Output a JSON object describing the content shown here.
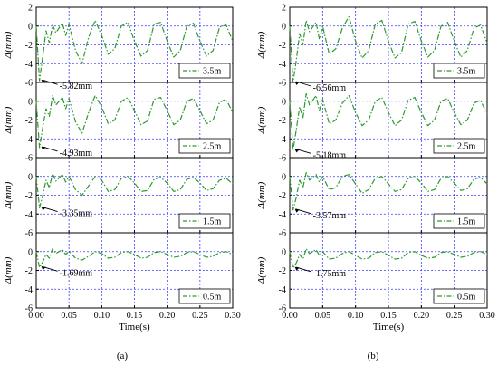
{
  "figure": {
    "x_axis_label": "Time(s)",
    "y_axis_label": "Δ(mm)",
    "grid": true,
    "series_color": "#2e9a2e",
    "grid_color": "#3b3bff",
    "legend_placement": "bottom-right",
    "line_style": "dash-dot"
  },
  "chart_data": [
    {
      "type": "line",
      "panel_label": "(a)",
      "xlim": [
        0,
        0.3
      ],
      "ylim": [
        -6,
        2
      ],
      "xticks": [
        "0.00",
        "0.05",
        "0.10",
        "0.15",
        "0.20",
        "0.25",
        "0.30"
      ],
      "subplots": [
        {
          "legend": "3.5m",
          "annotation": "-5.82mm",
          "yticks": [
            "2",
            "0",
            "-2",
            "-4",
            "-6"
          ],
          "series": [
            {
              "name": "3.5m",
              "x": [
                0,
                0.005,
                0.01,
                0.015,
                0.02,
                0.025,
                0.03,
                0.04,
                0.045,
                0.05,
                0.06,
                0.07,
                0.08,
                0.09,
                0.1,
                0.11,
                0.12,
                0.13,
                0.14,
                0.15,
                0.16,
                0.17,
                0.18,
                0.19,
                0.2,
                0.21,
                0.22,
                0.23,
                0.24,
                0.25,
                0.26,
                0.27,
                0.28,
                0.29,
                0.3
              ],
              "y": [
                0,
                -5.82,
                -3.2,
                -0.5,
                -1.8,
                0.1,
                -0.7,
                0.3,
                -1.0,
                0.2,
                -2.6,
                -4.0,
                -1.2,
                0.6,
                -1.0,
                -3.0,
                -2.4,
                0.0,
                0.4,
                -1.6,
                -3.2,
                -2.6,
                0.2,
                0.4,
                -1.6,
                -3.3,
                -2.6,
                0.0,
                0.3,
                -1.6,
                -3.2,
                -2.6,
                -0.1,
                0.1,
                -1.6
              ]
            }
          ]
        },
        {
          "legend": "2.5m",
          "annotation": "-4.93mm",
          "yticks": [
            "0",
            "-2",
            "-4",
            "-6"
          ],
          "series": [
            {
              "name": "2.5m",
              "x": [
                0,
                0.005,
                0.01,
                0.015,
                0.02,
                0.025,
                0.03,
                0.04,
                0.045,
                0.05,
                0.06,
                0.07,
                0.08,
                0.09,
                0.1,
                0.11,
                0.12,
                0.13,
                0.14,
                0.15,
                0.16,
                0.17,
                0.18,
                0.19,
                0.2,
                0.21,
                0.22,
                0.23,
                0.24,
                0.25,
                0.26,
                0.27,
                0.28,
                0.29,
                0.3
              ],
              "y": [
                0,
                -4.93,
                -2.8,
                -0.8,
                -1.6,
                0.6,
                -0.4,
                0.4,
                -0.8,
                0.3,
                -2.2,
                -3.4,
                -1.2,
                0.6,
                -0.6,
                -2.4,
                -2.0,
                0.0,
                0.4,
                -1.0,
                -2.5,
                -2.1,
                0.2,
                0.4,
                -1.0,
                -2.5,
                -2.0,
                0.0,
                0.3,
                -1.0,
                -2.4,
                -2.0,
                -0.1,
                0.2,
                -1.2
              ]
            }
          ]
        },
        {
          "legend": "1.5m",
          "annotation": "-3.35mm",
          "yticks": [
            "0",
            "-2",
            "-4",
            "-6"
          ],
          "series": [
            {
              "name": "1.5m",
              "x": [
                0,
                0.005,
                0.01,
                0.015,
                0.02,
                0.025,
                0.03,
                0.04,
                0.045,
                0.05,
                0.06,
                0.07,
                0.08,
                0.09,
                0.1,
                0.11,
                0.12,
                0.13,
                0.14,
                0.15,
                0.16,
                0.17,
                0.18,
                0.19,
                0.2,
                0.21,
                0.22,
                0.23,
                0.24,
                0.25,
                0.26,
                0.27,
                0.28,
                0.29,
                0.3
              ],
              "y": [
                0,
                -3.35,
                -2.0,
                -0.4,
                -1.2,
                0.3,
                -0.5,
                0.2,
                -0.6,
                0.0,
                -1.4,
                -2.0,
                -1.0,
                0.0,
                -0.4,
                -1.6,
                -1.4,
                -0.2,
                0.0,
                -0.7,
                -1.6,
                -1.5,
                -0.3,
                -0.1,
                -0.7,
                -1.6,
                -1.4,
                -0.3,
                -0.1,
                -0.7,
                -1.5,
                -1.3,
                -0.4,
                -0.2,
                -0.8
              ]
            }
          ]
        },
        {
          "legend": "0.5m",
          "annotation": "-1.69mm",
          "yticks": [
            "0",
            "-2",
            "-4",
            "-6"
          ],
          "series": [
            {
              "name": "0.5m",
              "x": [
                0,
                0.005,
                0.01,
                0.015,
                0.02,
                0.025,
                0.03,
                0.04,
                0.045,
                0.05,
                0.06,
                0.07,
                0.08,
                0.09,
                0.1,
                0.11,
                0.12,
                0.13,
                0.14,
                0.15,
                0.16,
                0.17,
                0.18,
                0.19,
                0.2,
                0.21,
                0.22,
                0.23,
                0.24,
                0.25,
                0.26,
                0.27,
                0.28,
                0.29,
                0.3
              ],
              "y": [
                0,
                -1.69,
                -1.1,
                -0.3,
                -0.7,
                0.3,
                -0.2,
                0.2,
                -0.3,
                0.0,
                -0.7,
                -0.9,
                -0.5,
                0.0,
                -0.2,
                -0.7,
                -0.6,
                -0.1,
                0.0,
                -0.3,
                -0.7,
                -0.6,
                -0.1,
                0.0,
                -0.3,
                -0.6,
                -0.5,
                -0.1,
                0.0,
                -0.3,
                -0.6,
                -0.5,
                -0.1,
                0.0,
                -0.3
              ]
            }
          ]
        }
      ]
    },
    {
      "type": "line",
      "panel_label": "(b)",
      "xlim": [
        0,
        0.3
      ],
      "ylim": [
        -6,
        2
      ],
      "xticks": [
        "0.00",
        "0.05",
        "0.10",
        "0.15",
        "0.20",
        "0.25",
        "0.30"
      ],
      "subplots": [
        {
          "legend": "3.5m",
          "annotation": "-6.56mm",
          "yticks": [
            "2",
            "0",
            "-2",
            "-4",
            "-6"
          ],
          "series": [
            {
              "name": "3.5m",
              "x": [
                0,
                0.005,
                0.01,
                0.015,
                0.02,
                0.025,
                0.03,
                0.04,
                0.045,
                0.05,
                0.06,
                0.07,
                0.08,
                0.09,
                0.1,
                0.11,
                0.12,
                0.13,
                0.14,
                0.15,
                0.16,
                0.17,
                0.18,
                0.19,
                0.2,
                0.21,
                0.22,
                0.23,
                0.24,
                0.25,
                0.26,
                0.27,
                0.28,
                0.29,
                0.3
              ],
              "y": [
                0,
                -6.56,
                -3.6,
                -0.8,
                -2.0,
                0.6,
                -0.6,
                0.4,
                -1.4,
                0.0,
                -3.0,
                -2.4,
                -0.2,
                1.0,
                -1.6,
                -3.4,
                -2.6,
                0.2,
                0.6,
                -1.6,
                -3.4,
                -2.8,
                0.2,
                0.5,
                -1.6,
                -3.3,
                -2.6,
                0.0,
                0.4,
                -1.6,
                -3.3,
                -2.6,
                -0.2,
                0.1,
                -1.8
              ]
            }
          ]
        },
        {
          "legend": "2.5m",
          "annotation": "-5.18mm",
          "yticks": [
            "0",
            "-2",
            "-4",
            "-6"
          ],
          "series": [
            {
              "name": "2.5m",
              "x": [
                0,
                0.005,
                0.01,
                0.015,
                0.02,
                0.025,
                0.03,
                0.04,
                0.045,
                0.05,
                0.06,
                0.07,
                0.08,
                0.09,
                0.1,
                0.11,
                0.12,
                0.13,
                0.14,
                0.15,
                0.16,
                0.17,
                0.18,
                0.19,
                0.2,
                0.21,
                0.22,
                0.23,
                0.24,
                0.25,
                0.26,
                0.27,
                0.28,
                0.29,
                0.3
              ],
              "y": [
                0,
                -5.18,
                -3.0,
                -0.6,
                -1.8,
                0.8,
                -0.4,
                0.6,
                -1.0,
                0.2,
                -2.4,
                -2.0,
                -0.2,
                0.6,
                -1.2,
                -2.6,
                -2.0,
                0.0,
                0.4,
                -1.2,
                -2.6,
                -2.0,
                0.1,
                0.4,
                -1.2,
                -2.6,
                -2.0,
                0.0,
                0.3,
                -1.2,
                -2.5,
                -2.0,
                -0.2,
                0.1,
                -1.4
              ]
            }
          ]
        },
        {
          "legend": "1.5m",
          "annotation": "-3.57mm",
          "yticks": [
            "0",
            "-2",
            "-4",
            "-6"
          ],
          "series": [
            {
              "name": "1.5m",
              "x": [
                0,
                0.005,
                0.01,
                0.015,
                0.02,
                0.025,
                0.03,
                0.04,
                0.045,
                0.05,
                0.06,
                0.07,
                0.08,
                0.09,
                0.1,
                0.11,
                0.12,
                0.13,
                0.14,
                0.15,
                0.16,
                0.17,
                0.18,
                0.19,
                0.2,
                0.21,
                0.22,
                0.23,
                0.24,
                0.25,
                0.26,
                0.27,
                0.28,
                0.29,
                0.3
              ],
              "y": [
                0,
                -3.57,
                -2.2,
                -0.4,
                -1.2,
                0.4,
                -0.4,
                0.2,
                -0.6,
                0.0,
                -1.4,
                -1.2,
                0.0,
                0.2,
                -0.8,
                -1.8,
                -1.4,
                -0.2,
                0.0,
                -0.8,
                -1.6,
                -1.4,
                -0.2,
                0.0,
                -0.7,
                -1.6,
                -1.4,
                -0.2,
                0.0,
                -0.7,
                -1.5,
                -1.3,
                -0.3,
                -0.1,
                -0.8
              ]
            }
          ]
        },
        {
          "legend": "0.5m",
          "annotation": "-1.75mm",
          "yticks": [
            "0",
            "-2",
            "-4",
            "-6"
          ],
          "series": [
            {
              "name": "0.5m",
              "x": [
                0,
                0.005,
                0.01,
                0.015,
                0.02,
                0.025,
                0.03,
                0.04,
                0.045,
                0.05,
                0.06,
                0.07,
                0.08,
                0.09,
                0.1,
                0.11,
                0.12,
                0.13,
                0.14,
                0.15,
                0.16,
                0.17,
                0.18,
                0.19,
                0.2,
                0.21,
                0.22,
                0.23,
                0.24,
                0.25,
                0.26,
                0.27,
                0.28,
                0.29,
                0.3
              ],
              "y": [
                0,
                -1.75,
                -1.2,
                -0.3,
                -0.8,
                0.3,
                -0.2,
                0.2,
                -0.4,
                0.0,
                -0.8,
                -0.7,
                -0.2,
                0.0,
                -0.4,
                -0.8,
                -0.7,
                -0.1,
                0.0,
                -0.4,
                -0.8,
                -0.7,
                -0.1,
                0.0,
                -0.4,
                -0.7,
                -0.6,
                -0.1,
                0.0,
                -0.3,
                -0.6,
                -0.5,
                -0.1,
                0.0,
                -0.3
              ]
            }
          ]
        }
      ]
    }
  ]
}
